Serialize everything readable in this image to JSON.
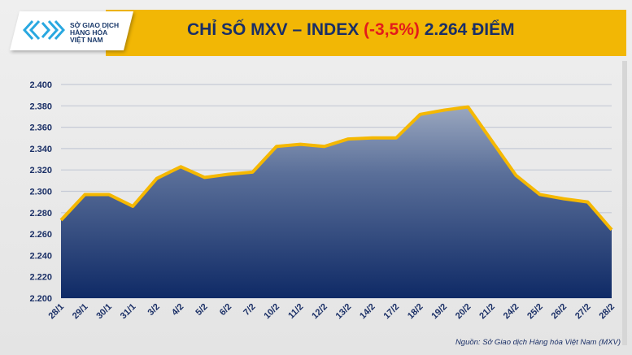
{
  "header": {
    "logo_text": [
      "SỞ GIAO DỊCH",
      "HÀNG HÓA",
      "VIỆT NAM"
    ],
    "title_prefix": "CHỈ SỐ MXV – INDEX ",
    "title_change": "(-3,5%)",
    "title_suffix": " 2.264 ĐIỂM"
  },
  "source": "Nguồn: Sở Giao dịch Hàng hóa Việt Nam (MXV)",
  "colors": {
    "banner": "#f2b705",
    "line": "#f5b800",
    "fill_top": "#8a9ab8",
    "fill_bottom": "#0f2a66",
    "title": "#1a2f66",
    "negative": "#e31b1b"
  },
  "chart_data": {
    "type": "area",
    "title": "CHỈ SỐ MXV – INDEX (-3,5%) 2.264 ĐIỂM",
    "categories": [
      "28/1",
      "29/1",
      "30/1",
      "31/1",
      "3/2",
      "4/2",
      "5/2",
      "6/2",
      "7/2",
      "10/2",
      "11/2",
      "12/2",
      "13/2",
      "14/2",
      "17/2",
      "18/2",
      "19/2",
      "20/2",
      "21/2",
      "24/2",
      "25/2",
      "26/2",
      "27/2",
      "28/2"
    ],
    "values": [
      2273,
      2297,
      2297,
      2286,
      2312,
      2323,
      2313,
      2316,
      2318,
      2342,
      2344,
      2342,
      2349,
      2350,
      2350,
      2372,
      2376,
      2379,
      2347,
      2315,
      2297,
      2293,
      2290,
      2264
    ],
    "ylim": [
      2200,
      2400
    ],
    "yticks": [
      2200,
      2220,
      2240,
      2260,
      2280,
      2300,
      2320,
      2340,
      2360,
      2380,
      2400
    ],
    "ytick_labels": [
      "2.200",
      "2.220",
      "2.240",
      "2.260",
      "2.280",
      "2.300",
      "2.320",
      "2.340",
      "2.360",
      "2.380",
      "2.400"
    ],
    "grid": true,
    "xlabel": "",
    "ylabel": ""
  }
}
